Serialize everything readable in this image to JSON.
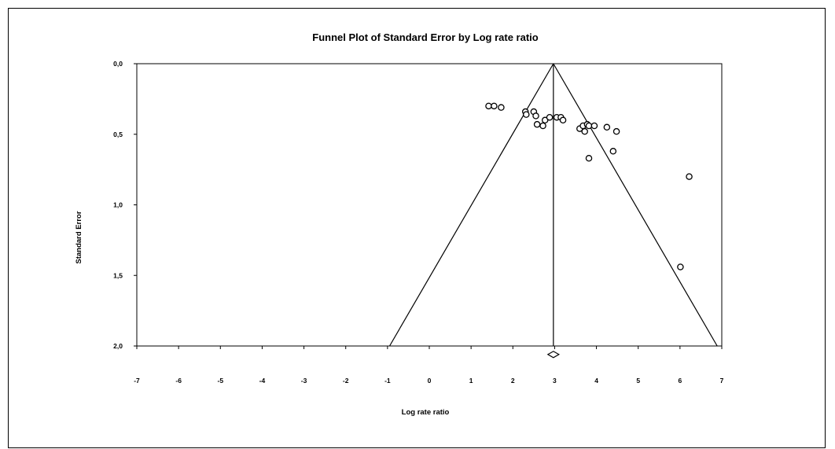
{
  "chart_data": {
    "type": "scatter",
    "title": "Funnel Plot of Standard Error by Log rate ratio",
    "xlabel": "Log rate ratio",
    "ylabel": "Standard Error",
    "xlim": [
      -7,
      7
    ],
    "ylim": [
      0,
      2
    ],
    "y_reversed": true,
    "x_ticks": [
      "-7",
      "-6",
      "-5",
      "-4",
      "-3",
      "-2",
      "-1",
      "0",
      "1",
      "2",
      "3",
      "4",
      "5",
      "6",
      "7"
    ],
    "y_ticks": [
      "0,0",
      "0,5",
      "1,0",
      "1,5",
      "2,0"
    ],
    "grid": false,
    "summary_effect": 2.97,
    "summary_diamond_y": 2.06,
    "funnel_apex": [
      2.97,
      0.0
    ],
    "funnel_base": [
      [
        -0.95,
        2.0
      ],
      [
        6.89,
        2.0
      ]
    ],
    "series": [
      {
        "points": [
          {
            "x": 1.42,
            "y": 0.3
          },
          {
            "x": 1.55,
            "y": 0.3
          },
          {
            "x": 1.72,
            "y": 0.31
          },
          {
            "x": 2.3,
            "y": 0.34
          },
          {
            "x": 2.32,
            "y": 0.36
          },
          {
            "x": 2.5,
            "y": 0.34
          },
          {
            "x": 2.55,
            "y": 0.37
          },
          {
            "x": 2.58,
            "y": 0.43
          },
          {
            "x": 2.72,
            "y": 0.44
          },
          {
            "x": 2.77,
            "y": 0.4
          },
          {
            "x": 2.88,
            "y": 0.38
          },
          {
            "x": 3.05,
            "y": 0.38
          },
          {
            "x": 3.15,
            "y": 0.38
          },
          {
            "x": 3.2,
            "y": 0.4
          },
          {
            "x": 3.6,
            "y": 0.46
          },
          {
            "x": 3.68,
            "y": 0.44
          },
          {
            "x": 3.72,
            "y": 0.48
          },
          {
            "x": 3.78,
            "y": 0.43
          },
          {
            "x": 3.82,
            "y": 0.44
          },
          {
            "x": 3.95,
            "y": 0.44
          },
          {
            "x": 4.25,
            "y": 0.45
          },
          {
            "x": 4.48,
            "y": 0.48
          },
          {
            "x": 4.4,
            "y": 0.62
          },
          {
            "x": 3.82,
            "y": 0.67
          },
          {
            "x": 6.22,
            "y": 0.8
          },
          {
            "x": 6.01,
            "y": 1.44
          }
        ]
      }
    ]
  }
}
